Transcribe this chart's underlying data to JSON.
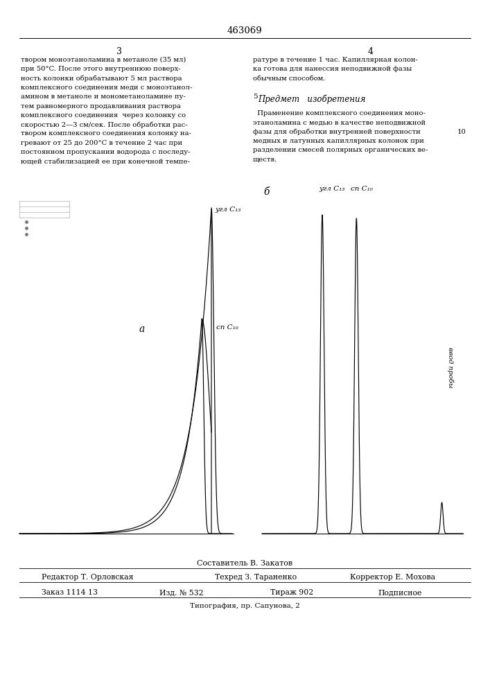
{
  "title": "463069",
  "page_left": "3",
  "page_right": "4",
  "left_text_lines": [
    "твором моноэтаноламина в метаноле (35 мл)",
    "при 50°C. После этого внутреннюю поверх-",
    "ность колонки обрабатывают 5 мл раствора",
    "комплексного соединения меди с моноэтанол-",
    "амином в метаноле и монометаноламине пу-",
    "тем равномерного продавливания раствора",
    "комплексного соединения  через колонку со",
    "скоростью 2—3 см/сек. После обработки рас-",
    "твором комплексного соединения колонку на-",
    "гревают от 25 до 200°C в течение 2 час при",
    "постоянном пропускании водорода с последу-",
    "ющей стабилизацией ее при конечной темпе-"
  ],
  "right_text_top": [
    "ратуре в течение 1 час. Капиллярная колон-",
    "ка готова для нанессия неподвижной фазы",
    "обычным способом."
  ],
  "section_num": "5",
  "section_title": "Предмет   изобретения",
  "right_text_body": [
    "  Праменение комплексного соединения моно-",
    "этаноламина с медью в качестве неподвижной",
    "фазы для обработки внутренней поверхности",
    "медных и латунных капиллярных колонок при",
    "разделении смесей полярных органических ве-",
    "ществ."
  ],
  "line_num_10": "10",
  "chrom_a_label": "а",
  "chrom_b_label": "б",
  "chrom_a_c13": "угл C₁₃",
  "chrom_a_c10": "сп C₁₀",
  "chrom_b_c13": "угл C₁₃",
  "chrom_b_c10": "сп C₁₀",
  "vvod_label": "ввод пробы",
  "footer_compiler": "Составитель В. Закатов",
  "footer_editor": "Редактор Т. Орловская",
  "footer_tech": "Техред З. Тараненко",
  "footer_corrector": "Корректор Е. Мохова",
  "footer_order": "Заказ 1114 13",
  "footer_pub": "Изд. № 532",
  "footer_print": "Тираж 902",
  "footer_sign": "Подписное",
  "footer_printer": "Типография, пр. Сапунова, 2"
}
